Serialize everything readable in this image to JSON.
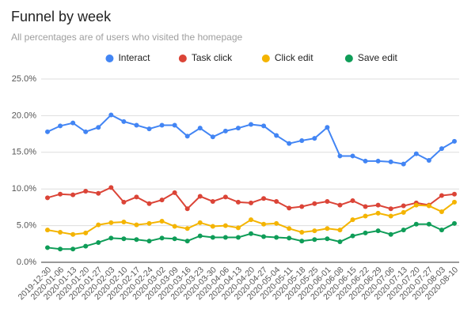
{
  "chart_data": {
    "type": "line",
    "title": "Funnel by week",
    "subtitle": "All percentages are of users who visited the homepage",
    "categories": [
      "2019-12-30",
      "2020-01-06",
      "2020-01-13",
      "2020-01-20",
      "2020-01-27",
      "2020-02-03",
      "2020-02-10",
      "2020-02-17",
      "2020-02-24",
      "2020-03-02",
      "2020-03-09",
      "2020-03-16",
      "2020-03-23",
      "2020-03-30",
      "2020-04-06",
      "2020-04-13",
      "2020-04-20",
      "2020-04-27",
      "2020-05-04",
      "2020-05-11",
      "2020-05-18",
      "2020-05-25",
      "2020-06-01",
      "2020-06-08",
      "2020-06-15",
      "2020-06-22",
      "2020-06-29",
      "2020-07-06",
      "2020-07-13",
      "2020-07-20",
      "2020-07-27",
      "2020-08-03",
      "2020-08-10"
    ],
    "series": [
      {
        "name": "Interact",
        "color": "#4285f4",
        "values": [
          17.8,
          18.6,
          19.0,
          17.8,
          18.4,
          20.1,
          19.2,
          18.7,
          18.2,
          18.7,
          18.7,
          17.2,
          18.3,
          17.1,
          17.9,
          18.3,
          18.8,
          18.6,
          17.3,
          16.2,
          16.6,
          16.9,
          18.4,
          14.5,
          14.5,
          13.8,
          13.8,
          13.7,
          13.4,
          14.8,
          13.9,
          15.5,
          16.5
        ]
      },
      {
        "name": "Task click",
        "color": "#db4437",
        "values": [
          8.8,
          9.3,
          9.2,
          9.7,
          9.4,
          10.2,
          8.2,
          8.9,
          8.0,
          8.5,
          9.5,
          7.3,
          9.0,
          8.3,
          8.9,
          8.2,
          8.1,
          8.7,
          8.3,
          7.4,
          7.6,
          8.0,
          8.3,
          7.8,
          8.4,
          7.6,
          7.8,
          7.3,
          7.7,
          8.1,
          7.8,
          9.1,
          9.3
        ]
      },
      {
        "name": "Click edit",
        "color": "#f4b400",
        "values": [
          4.4,
          4.1,
          3.8,
          4.0,
          5.1,
          5.4,
          5.5,
          5.1,
          5.3,
          5.6,
          4.9,
          4.6,
          5.4,
          4.9,
          5.0,
          4.7,
          5.8,
          5.2,
          5.3,
          4.6,
          4.1,
          4.3,
          4.6,
          4.4,
          5.8,
          6.3,
          6.7,
          6.3,
          6.8,
          7.8,
          7.7,
          6.9,
          8.2
        ]
      },
      {
        "name": "Save edit",
        "color": "#0f9d58",
        "values": [
          2.0,
          1.8,
          1.8,
          2.2,
          2.7,
          3.3,
          3.2,
          3.1,
          2.9,
          3.3,
          3.2,
          2.9,
          3.6,
          3.4,
          3.4,
          3.4,
          3.9,
          3.5,
          3.4,
          3.3,
          2.9,
          3.1,
          3.2,
          2.8,
          3.6,
          4.0,
          4.3,
          3.8,
          4.4,
          5.2,
          5.2,
          4.4,
          5.3
        ]
      }
    ],
    "ylim": [
      0,
      25
    ],
    "yticks": [
      {
        "value": 0,
        "label": "0.0%"
      },
      {
        "value": 5,
        "label": "5.0%"
      },
      {
        "value": 10,
        "label": "10.0%"
      },
      {
        "value": 15,
        "label": "15.0%"
      },
      {
        "value": 20,
        "label": "20.0%"
      },
      {
        "value": 25,
        "label": "25.0%"
      }
    ],
    "grid": true,
    "legend": "top"
  }
}
